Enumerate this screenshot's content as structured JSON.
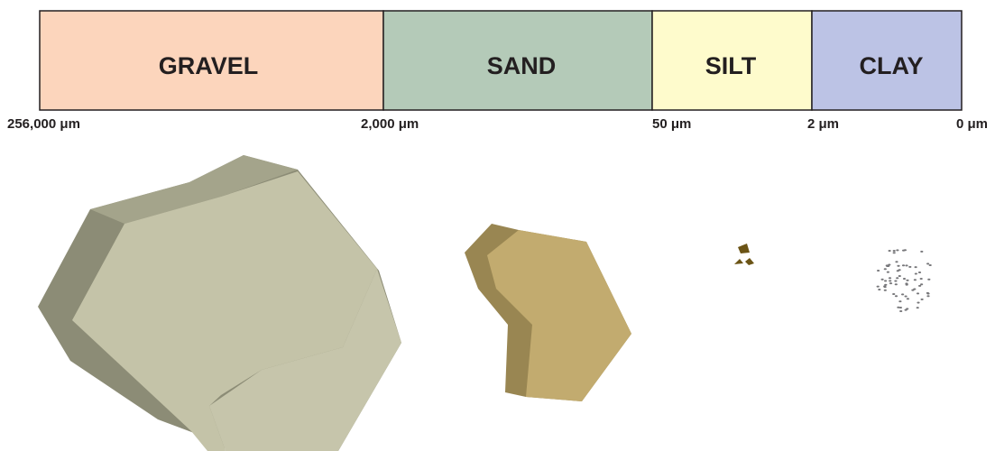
{
  "classes": [
    "GRAVEL",
    "SAND",
    "SILT",
    "CLAY"
  ],
  "boundaries": [
    "256,000 μm",
    "2,000 μm",
    "50 μm",
    "2 μm",
    "0 μm"
  ]
}
